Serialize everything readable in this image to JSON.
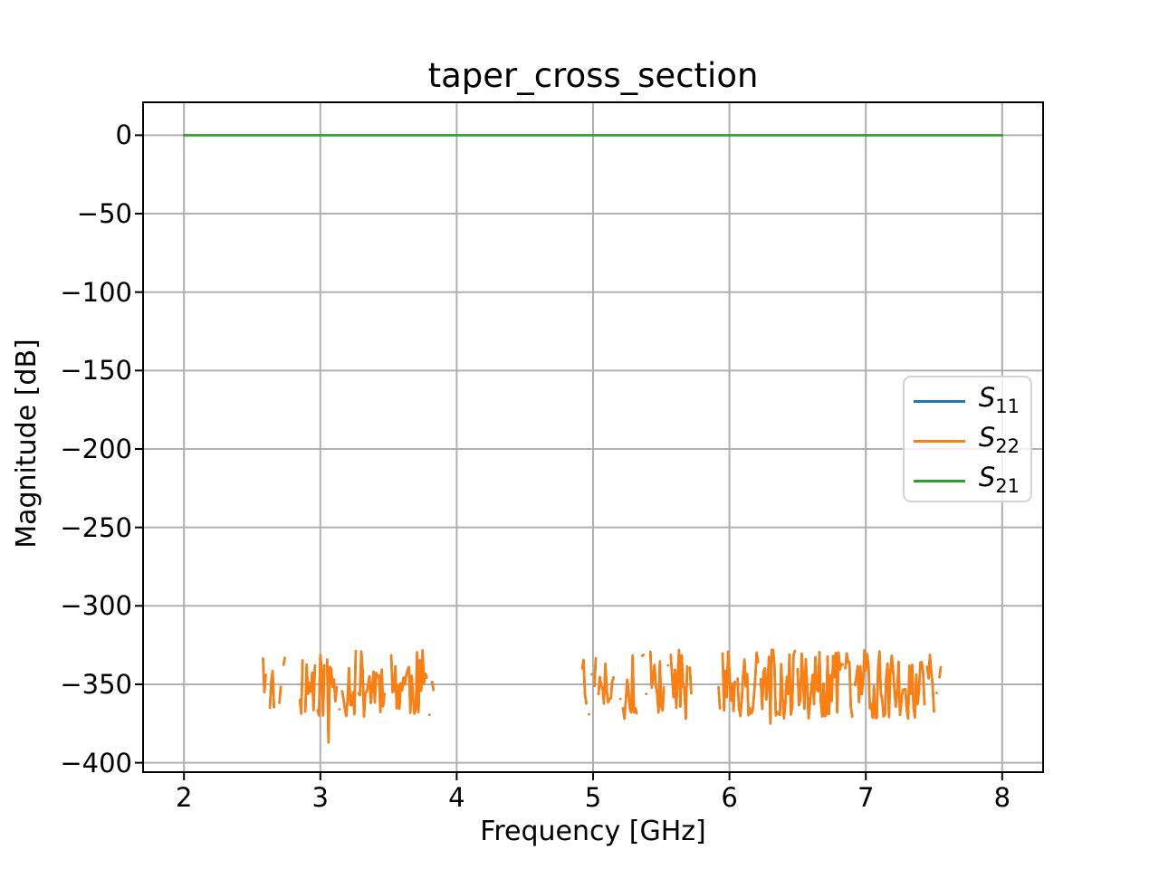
{
  "chart_data": {
    "type": "line",
    "title": "taper_cross_section",
    "xlabel": "Frequency [GHz]",
    "ylabel": "Magnitude [dB]",
    "xlim": [
      1.7,
      8.3
    ],
    "ylim": [
      -406,
      21
    ],
    "grid": true,
    "grid_color": "#b0b0b0",
    "background": "#ffffff",
    "x_ticks": {
      "values": [
        2,
        3,
        4,
        5,
        6,
        7,
        8
      ],
      "labels": [
        "2",
        "3",
        "4",
        "5",
        "6",
        "7",
        "8"
      ]
    },
    "y_ticks": {
      "values": [
        0,
        -50,
        -100,
        -150,
        -200,
        -250,
        -300,
        -350,
        -400
      ],
      "labels": [
        "0",
        "−50",
        "−100",
        "−150",
        "−200",
        "−250",
        "−300",
        "−350",
        "−400"
      ]
    },
    "legend": {
      "location": "center right",
      "entries": [
        {
          "series": "S11",
          "symbol": "S",
          "subscript": "11",
          "color": "#1f77b4"
        },
        {
          "series": "S22",
          "symbol": "S",
          "subscript": "22",
          "color": "#ff7f0e"
        },
        {
          "series": "S21",
          "symbol": "S",
          "subscript": "21",
          "color": "#2ca02c"
        }
      ]
    },
    "series": [
      {
        "name": "S11",
        "color": "#1f77b4",
        "style": "noise",
        "note": "numerical noise floor around -350 dB, coincident with S22 and hidden beneath it",
        "base_db": -350,
        "amp_db": 22,
        "step_ghz": 0.01,
        "segments": [
          {
            "f0": 2.57,
            "f1": 2.74,
            "gap": 0.4,
            "seed": 3
          },
          {
            "f0": 2.85,
            "f1": 3.83,
            "gap": 0.1,
            "seed": 11
          },
          {
            "f0": 4.92,
            "f1": 5.32,
            "gap": 0.18,
            "seed": 5
          },
          {
            "f0": 5.36,
            "f1": 5.72,
            "gap": 0.15,
            "seed": 7
          },
          {
            "f0": 5.92,
            "f1": 7.55,
            "gap": 0.08,
            "seed": 13
          }
        ],
        "dips": [
          [
            3.06,
            -387
          ],
          [
            6.3,
            -375
          ]
        ]
      },
      {
        "name": "S22",
        "color": "#ff7f0e",
        "style": "noise",
        "note": "numerical noise floor around -350 dB between 2.57-3.83 GHz and 4.92-7.55 GHz, blank elsewhere",
        "base_db": -350,
        "amp_db": 22,
        "step_ghz": 0.01,
        "segments": [
          {
            "f0": 2.57,
            "f1": 2.74,
            "gap": 0.4,
            "seed": 3
          },
          {
            "f0": 2.85,
            "f1": 3.83,
            "gap": 0.1,
            "seed": 11
          },
          {
            "f0": 4.92,
            "f1": 5.32,
            "gap": 0.18,
            "seed": 5
          },
          {
            "f0": 5.36,
            "f1": 5.72,
            "gap": 0.15,
            "seed": 7
          },
          {
            "f0": 5.92,
            "f1": 7.55,
            "gap": 0.08,
            "seed": 13
          }
        ],
        "dips": [
          [
            3.06,
            -387
          ],
          [
            6.3,
            -375
          ]
        ]
      },
      {
        "name": "S21",
        "color": "#2ca02c",
        "style": "line",
        "x": [
          2,
          8
        ],
        "y": [
          0,
          0
        ]
      }
    ]
  }
}
